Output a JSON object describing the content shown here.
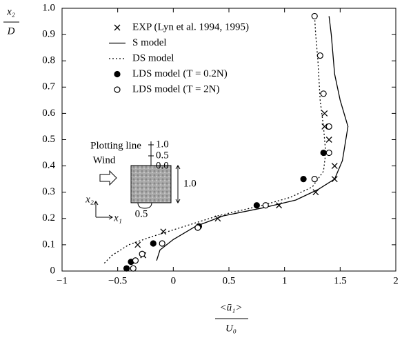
{
  "chart_data": {
    "type": "line",
    "y_label": {
      "numerator": "x₂",
      "denominator": "D"
    },
    "x_label": {
      "numerator": "<ū₁>",
      "denominator": "U₀"
    },
    "xlim": [
      -1,
      2
    ],
    "ylim": [
      0,
      1
    ],
    "xticks": [
      {
        "value": -1,
        "label": "−1"
      },
      {
        "value": -0.5,
        "label": "−0.5"
      },
      0,
      0.5,
      1,
      1.5,
      2
    ],
    "yticks": [
      0,
      0.1,
      0.2,
      0.3,
      0.4,
      0.5,
      0.6,
      0.7,
      0.8,
      0.9,
      {
        "value": 1,
        "label": "1.0"
      }
    ],
    "legend": "upper left",
    "series": [
      {
        "name": "EXP (Lyn et al. 1994, 1995)",
        "style": "cross",
        "color": "#000000",
        "x": [
          -0.32,
          -0.27,
          -0.09,
          0.4,
          0.95,
          1.28,
          1.45,
          1.45,
          1.4,
          1.36,
          1.36
        ],
        "values": [
          0.1,
          0.06,
          0.15,
          0.2,
          0.25,
          0.3,
          0.35,
          0.4,
          0.5,
          0.55,
          0.6
        ]
      },
      {
        "name": "S model",
        "style": "solid",
        "color": "#000000",
        "x": [
          -0.15,
          -0.12,
          0.0,
          0.2,
          0.45,
          0.8,
          1.1,
          1.3,
          1.45,
          1.52,
          1.57,
          1.5,
          1.45,
          1.42,
          1.4
        ],
        "values": [
          0.04,
          0.08,
          0.12,
          0.17,
          0.21,
          0.24,
          0.27,
          0.31,
          0.35,
          0.42,
          0.55,
          0.65,
          0.75,
          0.9,
          0.97
        ]
      },
      {
        "name": "DS model",
        "style": "dotted",
        "color": "#000000",
        "x": [
          -0.62,
          -0.55,
          -0.4,
          -0.2,
          0.1,
          0.4,
          0.8,
          1.05,
          1.25,
          1.35,
          1.37,
          1.35,
          1.32,
          1.3,
          1.28,
          1.27
        ],
        "values": [
          0.03,
          0.06,
          0.1,
          0.13,
          0.17,
          0.21,
          0.25,
          0.28,
          0.32,
          0.38,
          0.45,
          0.55,
          0.65,
          0.8,
          0.9,
          0.97
        ]
      },
      {
        "name": "LDS model (T = 0.2N)",
        "style": "filled",
        "color": "#000000",
        "x": [
          -0.42,
          -0.38,
          -0.18,
          0.23,
          0.75,
          1.17,
          1.35
        ],
        "values": [
          0.01,
          0.035,
          0.105,
          0.17,
          0.25,
          0.35,
          0.45
        ]
      },
      {
        "name": "LDS model (T = 2N)",
        "style": "open",
        "color": "#000000",
        "x": [
          -0.36,
          -0.34,
          -0.28,
          -0.1,
          0.22,
          0.83,
          1.27,
          1.4,
          1.4,
          1.35,
          1.32,
          1.27
        ],
        "values": [
          0.01,
          0.04,
          0.065,
          0.105,
          0.165,
          0.25,
          0.35,
          0.45,
          0.55,
          0.675,
          0.82,
          0.97
        ]
      }
    ],
    "annotations": [
      "Plotting line",
      "1.0",
      "0.5",
      "0.0",
      "Wind",
      "1.0",
      "0.5",
      "x₂",
      "x₁"
    ]
  }
}
